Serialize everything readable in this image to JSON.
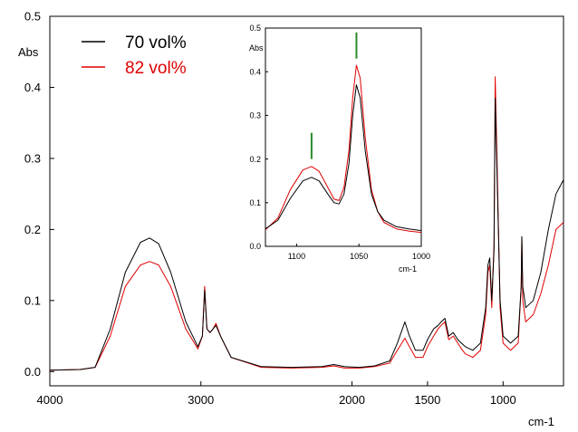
{
  "chart_data": [
    {
      "type": "line",
      "xlabel": "cm-1",
      "ylabel": "Abs",
      "xlim": [
        4000,
        600
      ],
      "ylim": [
        -0.02,
        0.5
      ],
      "x_reversed": true,
      "x_ticks": [
        "4000",
        "3000",
        "2000",
        "1500",
        "1000"
      ],
      "y_ticks": [
        "0.0",
        "0.1",
        "0.2",
        "0.3",
        "0.4",
        "0.5"
      ],
      "grid": false,
      "legend_placement": "top-left",
      "series": [
        {
          "name": "70 vol%",
          "color": "#000000",
          "points": [
            [
              4000,
              0.002
            ],
            [
              3800,
              0.003
            ],
            [
              3700,
              0.006
            ],
            [
              3600,
              0.06
            ],
            [
              3500,
              0.14
            ],
            [
              3400,
              0.182
            ],
            [
              3340,
              0.188
            ],
            [
              3280,
              0.18
            ],
            [
              3200,
              0.14
            ],
            [
              3100,
              0.07
            ],
            [
              3020,
              0.035
            ],
            [
              2990,
              0.05
            ],
            [
              2975,
              0.115
            ],
            [
              2960,
              0.06
            ],
            [
              2940,
              0.055
            ],
            [
              2920,
              0.06
            ],
            [
              2900,
              0.065
            ],
            [
              2870,
              0.05
            ],
            [
              2800,
              0.02
            ],
            [
              2600,
              0.007
            ],
            [
              2400,
              0.006
            ],
            [
              2200,
              0.007
            ],
            [
              2120,
              0.01
            ],
            [
              2050,
              0.007
            ],
            [
              1950,
              0.006
            ],
            [
              1850,
              0.008
            ],
            [
              1750,
              0.015
            ],
            [
              1700,
              0.04
            ],
            [
              1650,
              0.07
            ],
            [
              1620,
              0.05
            ],
            [
              1580,
              0.03
            ],
            [
              1530,
              0.03
            ],
            [
              1500,
              0.045
            ],
            [
              1460,
              0.06
            ],
            [
              1430,
              0.065
            ],
            [
              1410,
              0.07
            ],
            [
              1385,
              0.075
            ],
            [
              1360,
              0.05
            ],
            [
              1330,
              0.055
            ],
            [
              1300,
              0.045
            ],
            [
              1275,
              0.04
            ],
            [
              1250,
              0.035
            ],
            [
              1200,
              0.03
            ],
            [
              1150,
              0.04
            ],
            [
              1115,
              0.09
            ],
            [
              1100,
              0.15
            ],
            [
              1088,
              0.16
            ],
            [
              1075,
              0.1
            ],
            [
              1060,
              0.17
            ],
            [
              1052,
              0.385
            ],
            [
              1040,
              0.28
            ],
            [
              1020,
              0.1
            ],
            [
              1000,
              0.05
            ],
            [
              950,
              0.04
            ],
            [
              900,
              0.05
            ],
            [
              880,
              0.12
            ],
            [
              876,
              0.19
            ],
            [
              870,
              0.12
            ],
            [
              850,
              0.09
            ],
            [
              800,
              0.1
            ],
            [
              750,
              0.14
            ],
            [
              700,
              0.2
            ],
            [
              650,
              0.25
            ],
            [
              600,
              0.27
            ]
          ]
        },
        {
          "name": "82 vol%",
          "color": "#e00000",
          "points": [
            [
              4000,
              0.002
            ],
            [
              3800,
              0.003
            ],
            [
              3700,
              0.006
            ],
            [
              3600,
              0.05
            ],
            [
              3500,
              0.12
            ],
            [
              3400,
              0.15
            ],
            [
              3340,
              0.155
            ],
            [
              3280,
              0.15
            ],
            [
              3200,
              0.12
            ],
            [
              3100,
              0.06
            ],
            [
              3020,
              0.032
            ],
            [
              2990,
              0.05
            ],
            [
              2975,
              0.12
            ],
            [
              2960,
              0.06
            ],
            [
              2940,
              0.055
            ],
            [
              2920,
              0.06
            ],
            [
              2900,
              0.068
            ],
            [
              2870,
              0.05
            ],
            [
              2800,
              0.02
            ],
            [
              2600,
              0.006
            ],
            [
              2400,
              0.005
            ],
            [
              2200,
              0.006
            ],
            [
              2120,
              0.008
            ],
            [
              2050,
              0.005
            ],
            [
              1950,
              0.005
            ],
            [
              1850,
              0.007
            ],
            [
              1750,
              0.012
            ],
            [
              1700,
              0.03
            ],
            [
              1650,
              0.047
            ],
            [
              1620,
              0.035
            ],
            [
              1580,
              0.02
            ],
            [
              1530,
              0.02
            ],
            [
              1500,
              0.035
            ],
            [
              1460,
              0.05
            ],
            [
              1430,
              0.06
            ],
            [
              1410,
              0.065
            ],
            [
              1385,
              0.07
            ],
            [
              1360,
              0.045
            ],
            [
              1330,
              0.05
            ],
            [
              1300,
              0.04
            ],
            [
              1275,
              0.032
            ],
            [
              1250,
              0.025
            ],
            [
              1200,
              0.02
            ],
            [
              1150,
              0.03
            ],
            [
              1115,
              0.08
            ],
            [
              1100,
              0.14
            ],
            [
              1088,
              0.15
            ],
            [
              1075,
              0.09
            ],
            [
              1060,
              0.18
            ],
            [
              1052,
              0.415
            ],
            [
              1040,
              0.3
            ],
            [
              1020,
              0.09
            ],
            [
              1000,
              0.04
            ],
            [
              950,
              0.03
            ],
            [
              900,
              0.04
            ],
            [
              880,
              0.12
            ],
            [
              876,
              0.19
            ],
            [
              870,
              0.1
            ],
            [
              850,
              0.07
            ],
            [
              800,
              0.08
            ],
            [
              750,
              0.11
            ],
            [
              700,
              0.15
            ],
            [
              650,
              0.2
            ],
            [
              600,
              0.21
            ]
          ]
        }
      ]
    },
    {
      "type": "line",
      "inset": true,
      "xlabel": "cm-1",
      "ylabel": "Abs",
      "xlim": [
        1125,
        1000
      ],
      "ylim": [
        0,
        0.5
      ],
      "x_reversed": true,
      "x_ticks": [
        "1100",
        "1050",
        "1000"
      ],
      "y_ticks": [
        "0.0",
        "0.1",
        "0.2",
        "0.3",
        "0.4",
        "0.5"
      ],
      "markers": [
        {
          "x": 1088,
          "y_range": [
            0.2,
            0.26
          ],
          "color": "#2a8a2a"
        },
        {
          "x": 1052,
          "y_range": [
            0.43,
            0.49
          ],
          "color": "#2a8a2a"
        }
      ],
      "series": [
        {
          "name": "70 vol%",
          "color": "#000000",
          "points": [
            [
              1125,
              0.04
            ],
            [
              1115,
              0.06
            ],
            [
              1105,
              0.11
            ],
            [
              1095,
              0.15
            ],
            [
              1088,
              0.158
            ],
            [
              1082,
              0.15
            ],
            [
              1075,
              0.12
            ],
            [
              1070,
              0.1
            ],
            [
              1066,
              0.097
            ],
            [
              1062,
              0.12
            ],
            [
              1058,
              0.19
            ],
            [
              1055,
              0.3
            ],
            [
              1052,
              0.37
            ],
            [
              1049,
              0.34
            ],
            [
              1045,
              0.22
            ],
            [
              1040,
              0.12
            ],
            [
              1035,
              0.08
            ],
            [
              1030,
              0.06
            ],
            [
              1020,
              0.045
            ],
            [
              1010,
              0.04
            ],
            [
              1000,
              0.036
            ]
          ]
        },
        {
          "name": "82 vol%",
          "color": "#e00000",
          "points": [
            [
              1125,
              0.038
            ],
            [
              1115,
              0.065
            ],
            [
              1105,
              0.13
            ],
            [
              1095,
              0.175
            ],
            [
              1088,
              0.183
            ],
            [
              1082,
              0.172
            ],
            [
              1075,
              0.135
            ],
            [
              1070,
              0.108
            ],
            [
              1066,
              0.105
            ],
            [
              1062,
              0.135
            ],
            [
              1058,
              0.22
            ],
            [
              1055,
              0.34
            ],
            [
              1052,
              0.415
            ],
            [
              1049,
              0.385
            ],
            [
              1045,
              0.25
            ],
            [
              1040,
              0.13
            ],
            [
              1035,
              0.08
            ],
            [
              1030,
              0.055
            ],
            [
              1020,
              0.04
            ],
            [
              1010,
              0.035
            ],
            [
              1000,
              0.032
            ]
          ]
        }
      ]
    }
  ]
}
